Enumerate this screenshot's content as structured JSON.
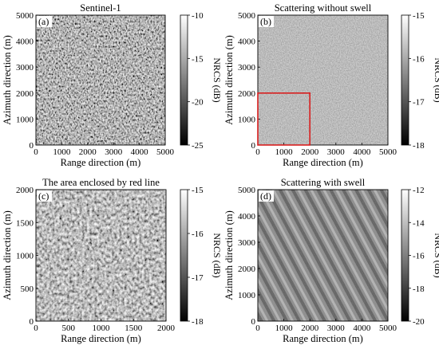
{
  "panels": [
    {
      "title": "Sentinel-1",
      "label": "(a)",
      "xlabel": "Range direction (m)",
      "ylabel": "Azimuth direction (m)",
      "xticks": [
        "0",
        "1000",
        "2000",
        "3000",
        "4000",
        "5000"
      ],
      "yticks": [
        "0",
        "1000",
        "2000",
        "3000",
        "4000",
        "5000"
      ],
      "colorbar_label": "NRCS (dB)",
      "colorbar_ticks": [
        "-10",
        "-15",
        "-20",
        "-25"
      ],
      "texture": "speckle-sar"
    },
    {
      "title": "Scattering without swell",
      "label": "(b)",
      "xlabel": "Range direction (m)",
      "ylabel": "Azimuth direction (m)",
      "xticks": [
        "0",
        "1000",
        "2000",
        "3000",
        "4000",
        "5000"
      ],
      "yticks": [
        "0",
        "1000",
        "2000",
        "3000",
        "4000",
        "5000"
      ],
      "colorbar_label": "NRCS (dB)",
      "colorbar_ticks": [
        "-15",
        "-16",
        "-17",
        "-18"
      ],
      "texture": "fine-noise",
      "highlight_box": {
        "x_range": [
          0,
          2000
        ],
        "y_range": [
          0,
          2000
        ],
        "color": "#d81e1e"
      }
    },
    {
      "title": "The area enclosed by red  line",
      "label": "(c)",
      "xlabel": "Range direction (m)",
      "ylabel": "Azimuth direction (m)",
      "xticks": [
        "0",
        "500",
        "1000",
        "1500",
        "2000"
      ],
      "yticks": [
        "0",
        "500",
        "1000",
        "1500",
        "2000"
      ],
      "colorbar_label": "NRCS (dB)",
      "colorbar_ticks": [
        "-15",
        "-16",
        "-17",
        "-18"
      ],
      "texture": "medium-noise"
    },
    {
      "title": "Scattering with swell",
      "label": "(d)",
      "xlabel": "Range direction (m)",
      "ylabel": "Azimuth direction (m)",
      "xticks": [
        "0",
        "1000",
        "2000",
        "3000",
        "4000",
        "5000"
      ],
      "yticks": [
        "0",
        "1000",
        "2000",
        "3000",
        "4000",
        "5000"
      ],
      "colorbar_label": "NRCS (dB)",
      "colorbar_ticks": [
        "-12",
        "-14",
        "-16",
        "-18",
        "-20"
      ],
      "texture": "swell-stripes"
    }
  ]
}
